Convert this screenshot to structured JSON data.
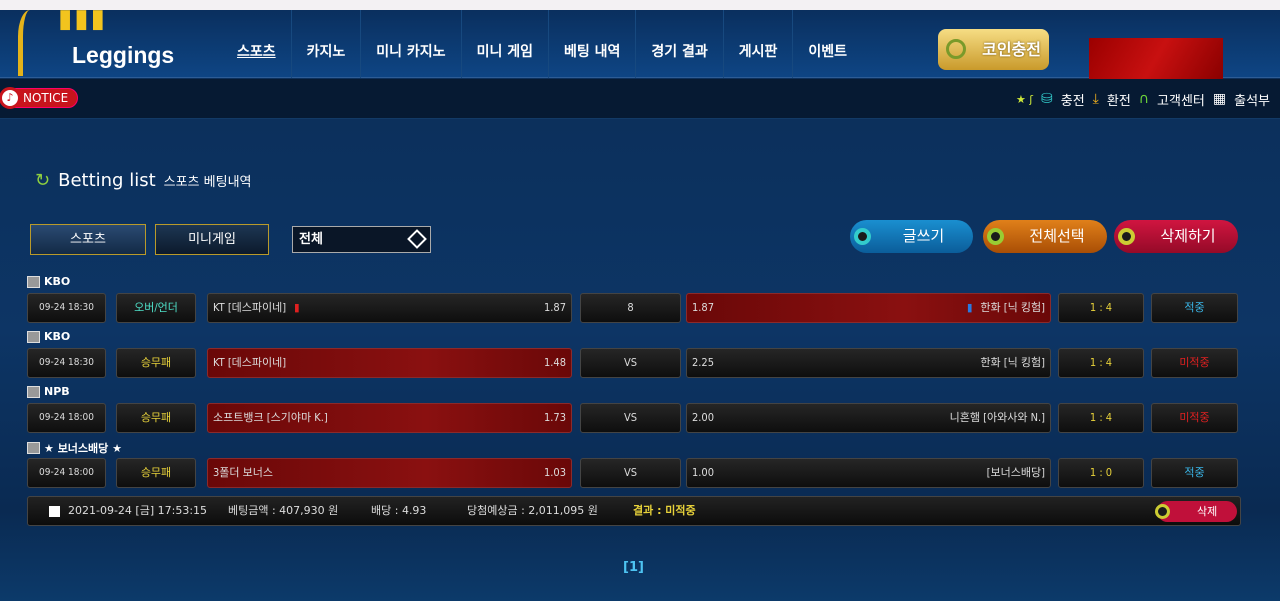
{
  "header": {
    "logo": "Leggings",
    "menu": [
      "스포츠",
      "카지노",
      "미니 카지노",
      "미니 게임",
      "베팅 내역",
      "경기 결과",
      "게시판",
      "이벤트"
    ],
    "coin_button": "코인충전"
  },
  "subbar": {
    "notice": "NOTICE",
    "utils": [
      {
        "icon": "coin-stack-icon",
        "label": "충전"
      },
      {
        "icon": "hand-money-icon",
        "label": "환전"
      },
      {
        "icon": "headset-icon",
        "label": "고객센터"
      },
      {
        "icon": "calendar-icon",
        "label": "출석부"
      }
    ]
  },
  "page": {
    "title": "Betting list",
    "subtitle": "스포츠 베팅내역",
    "tabs": [
      "스포츠",
      "미니게임"
    ],
    "filter": "전체",
    "actions": [
      "글쓰기",
      "전체선택",
      "삭제하기"
    ]
  },
  "bets": [
    {
      "league": "KBO",
      "datetime": "09-24 18:30",
      "type": "오버/언더",
      "home": "KT [데스파이네]",
      "home_odds": "1.87",
      "center": "8",
      "away_odds": "1.87",
      "away": "한화 [닉 킹험]",
      "score": "1 : 4",
      "result": "적중",
      "selected": "away",
      "arrows": true
    },
    {
      "league": "KBO",
      "datetime": "09-24 18:30",
      "type": "승무패",
      "home": "KT [데스파이네]",
      "home_odds": "1.48",
      "center": "VS",
      "away_odds": "2.25",
      "away": "한화 [닉 킹험]",
      "score": "1 : 4",
      "result": "미적중",
      "selected": "home"
    },
    {
      "league": "NPB",
      "datetime": "09-24 18:00",
      "type": "승무패",
      "home": "소프트뱅크 [스기야마 K.]",
      "home_odds": "1.73",
      "center": "VS",
      "away_odds": "2.00",
      "away": "니혼햄 [아와사와 N.]",
      "score": "1 : 4",
      "result": "미적중",
      "selected": "home"
    },
    {
      "league": "★ 보너스배당 ★",
      "datetime": "09-24 18:00",
      "type": "승무패",
      "home": "3폴더 보너스",
      "home_odds": "1.03",
      "center": "VS",
      "away_odds": "1.00",
      "away": "[보너스배당]",
      "score": "1 : 0",
      "result": "적중",
      "selected": "home"
    }
  ],
  "summary": {
    "datetime": "2021-09-24 [금] 17:53:15",
    "amount": "베팅금액 : 407,930 원",
    "odds": "배당 : 4.93",
    "expected": "당첨예상금 : 2,011,095 원",
    "result": "결과 : 미적중",
    "delete": "삭제"
  },
  "pagination": "[1]",
  "colors": {
    "win": "#3ab6e8",
    "lose": "#e02020",
    "yellow": "#e8d23a"
  }
}
